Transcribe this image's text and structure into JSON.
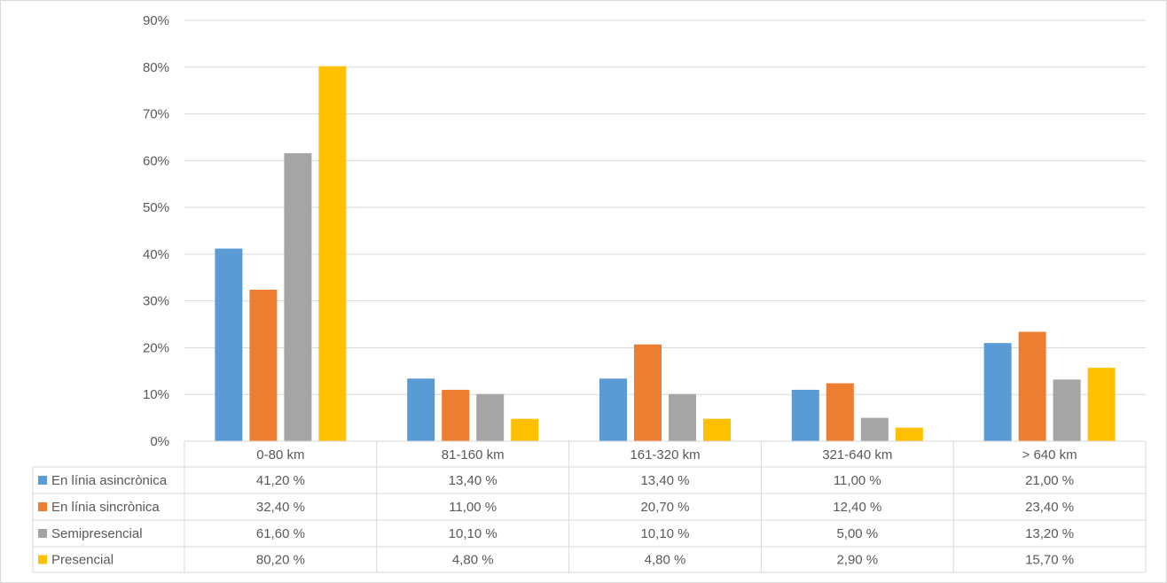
{
  "chart_data": {
    "type": "bar",
    "title": "",
    "xlabel": "",
    "ylabel": "",
    "ylim": [
      0,
      90
    ],
    "yticks": [
      "0%",
      "10%",
      "20%",
      "30%",
      "40%",
      "50%",
      "60%",
      "70%",
      "80%",
      "90%"
    ],
    "grid": true,
    "legend_placement": "data-table",
    "categories": [
      "0-80 km",
      "81-160 km",
      "161-320 km",
      "321-640 km",
      "> 640 km"
    ],
    "series": [
      {
        "name": "En línia asincrònica",
        "color": "#5b9bd5",
        "values": [
          41.2,
          13.4,
          13.4,
          11.0,
          21.0
        ],
        "labels": [
          "41,20 %",
          "13,40 %",
          "13,40 %",
          "11,00 %",
          "21,00 %"
        ]
      },
      {
        "name": "En línia sincrònica",
        "color": "#ed7d31",
        "values": [
          32.4,
          11.0,
          20.7,
          12.4,
          23.4
        ],
        "labels": [
          "32,40 %",
          "11,00 %",
          "20,70 %",
          "12,40 %",
          "23,40 %"
        ]
      },
      {
        "name": "Semipresencial",
        "color": "#a5a5a5",
        "values": [
          61.6,
          10.1,
          10.1,
          5.0,
          13.2
        ],
        "labels": [
          "61,60 %",
          "10,10 %",
          "10,10 %",
          "5,00 %",
          "13,20 %"
        ]
      },
      {
        "name": "Presencial",
        "color": "#ffc000",
        "values": [
          80.2,
          4.8,
          4.8,
          2.9,
          15.7
        ],
        "labels": [
          "80,20 %",
          "4,80 %",
          "4,80 %",
          "2,90 %",
          "15,70 %"
        ]
      }
    ]
  }
}
